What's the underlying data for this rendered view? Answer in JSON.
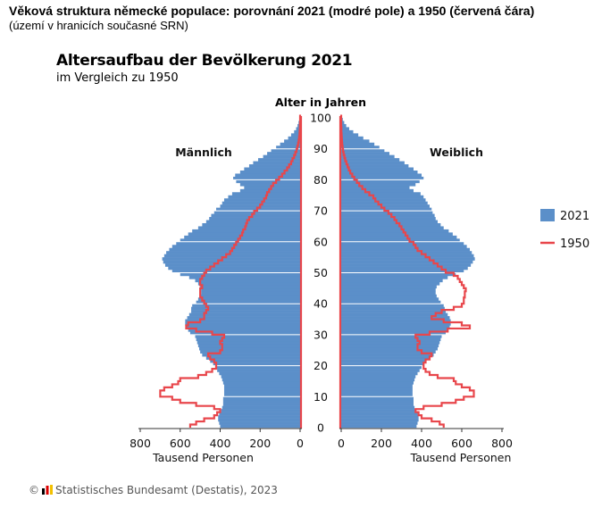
{
  "header": {
    "title": "Věková struktura německé populace: porovnání 2021 (modré pole) a 1950 (červená čára)",
    "subtitle": "(území v hranicích současné SRN)"
  },
  "figure": {
    "title": "Altersaufbau der Bevölkerung 2021",
    "subtitle": "im Vergleich zu 1950",
    "credit_symbol": "©",
    "credit_text": "Statistisches Bundesamt (Destatis), 2023",
    "logo_icon": "destatis-logo-icon"
  },
  "colors": {
    "series_2021": "#5b8fc9",
    "series_1950": "#e8464b",
    "gridline": "#ffffff",
    "axis": "#333333"
  },
  "chart_data": {
    "type": "population-pyramid",
    "title": "Altersaufbau der Bevölkerung 2021",
    "subtitle": "im Vergleich zu 1950",
    "age_axis_label": "Alter in Jahren",
    "age_ticks": [
      0,
      10,
      20,
      30,
      40,
      50,
      60,
      70,
      80,
      90,
      100
    ],
    "x_label": "Tausend Personen",
    "x_ticks": [
      800,
      600,
      400,
      200,
      0
    ],
    "x_ticks_right": [
      0,
      200,
      400,
      600,
      800
    ],
    "xlim": [
      0,
      800
    ],
    "ages": [
      0,
      1,
      2,
      3,
      4,
      5,
      6,
      7,
      8,
      9,
      10,
      11,
      12,
      13,
      14,
      15,
      16,
      17,
      18,
      19,
      20,
      21,
      22,
      23,
      24,
      25,
      26,
      27,
      28,
      29,
      30,
      31,
      32,
      33,
      34,
      35,
      36,
      37,
      38,
      39,
      40,
      41,
      42,
      43,
      44,
      45,
      46,
      47,
      48,
      49,
      50,
      51,
      52,
      53,
      54,
      55,
      56,
      57,
      58,
      59,
      60,
      61,
      62,
      63,
      64,
      65,
      66,
      67,
      68,
      69,
      70,
      71,
      72,
      73,
      74,
      75,
      76,
      77,
      78,
      79,
      80,
      81,
      82,
      83,
      84,
      85,
      86,
      87,
      88,
      89,
      90,
      91,
      92,
      93,
      94,
      95,
      96,
      97,
      98,
      99,
      100
    ],
    "panels": [
      {
        "name": "Männlich",
        "side": "left",
        "series": [
          {
            "name": "2021",
            "style": "bars",
            "values": [
              400,
              405,
              410,
              410,
              405,
              395,
              390,
              385,
              385,
              385,
              380,
              380,
              380,
              380,
              385,
              390,
              395,
              405,
              415,
              425,
              435,
              450,
              470,
              490,
              500,
              505,
              510,
              515,
              520,
              525,
              550,
              560,
              570,
              575,
              575,
              565,
              555,
              545,
              545,
              540,
              520,
              510,
              500,
              495,
              495,
              500,
              510,
              525,
              555,
              600,
              640,
              660,
              675,
              685,
              690,
              680,
              670,
              655,
              640,
              620,
              600,
              580,
              560,
              540,
              510,
              490,
              470,
              455,
              445,
              430,
              420,
              400,
              390,
              380,
              360,
              340,
              300,
              280,
              300,
              320,
              335,
              325,
              300,
              280,
              255,
              235,
              210,
              185,
              165,
              145,
              120,
              100,
              80,
              60,
              45,
              30,
              20,
              13,
              8,
              4,
              2
            ]
          },
          {
            "name": "1950",
            "style": "line",
            "values": [
              550,
              520,
              480,
              430,
              415,
              400,
              430,
              520,
              600,
              640,
              700,
              700,
              680,
              640,
              610,
              600,
              510,
              470,
              440,
              420,
              420,
              430,
              450,
              460,
              400,
              390,
              390,
              400,
              390,
              380,
              440,
              520,
              570,
              560,
              500,
              480,
              480,
              470,
              460,
              470,
              480,
              490,
              500,
              500,
              500,
              490,
              500,
              500,
              490,
              480,
              470,
              450,
              430,
              410,
              390,
              370,
              350,
              340,
              330,
              320,
              310,
              300,
              290,
              285,
              275,
              270,
              265,
              255,
              240,
              230,
              215,
              200,
              190,
              180,
              170,
              165,
              155,
              145,
              135,
              120,
              105,
              90,
              78,
              65,
              55,
              45,
              38,
              30,
              24,
              18,
              14,
              10,
              7,
              5,
              3,
              2,
              1,
              1,
              0,
              0,
              0
            ]
          }
        ]
      },
      {
        "name": "Weiblich",
        "side": "right",
        "series": [
          {
            "name": "2021",
            "style": "bars",
            "values": [
              375,
              380,
              385,
              385,
              380,
              370,
              365,
              360,
              360,
              360,
              355,
              355,
              355,
              355,
              360,
              365,
              370,
              380,
              390,
              400,
              410,
              420,
              440,
              460,
              470,
              480,
              485,
              490,
              495,
              500,
              520,
              530,
              540,
              545,
              545,
              540,
              530,
              520,
              515,
              510,
              495,
              485,
              475,
              470,
              470,
              475,
              490,
              505,
              530,
              570,
              610,
              630,
              645,
              655,
              665,
              660,
              650,
              640,
              625,
              610,
              590,
              575,
              555,
              535,
              510,
              495,
              480,
              470,
              465,
              455,
              450,
              440,
              430,
              420,
              410,
              395,
              360,
              340,
              370,
              390,
              410,
              400,
              380,
              360,
              335,
              315,
              290,
              265,
              240,
              215,
              190,
              165,
              140,
              110,
              85,
              60,
              40,
              25,
              15,
              8,
              4
            ]
          },
          {
            "name": "1950",
            "style": "line",
            "values": [
              510,
              490,
              450,
              400,
              385,
              370,
              410,
              500,
              570,
              610,
              660,
              660,
              640,
              600,
              570,
              560,
              480,
              440,
              420,
              410,
              410,
              420,
              440,
              450,
              400,
              380,
              380,
              390,
              380,
              370,
              440,
              530,
              640,
              600,
              510,
              450,
              470,
              500,
              560,
              600,
              610,
              610,
              615,
              615,
              620,
              610,
              600,
              590,
              580,
              560,
              520,
              500,
              480,
              460,
              440,
              420,
              400,
              380,
              370,
              360,
              340,
              330,
              320,
              310,
              300,
              290,
              275,
              265,
              250,
              235,
              215,
              200,
              185,
              170,
              160,
              140,
              120,
              105,
              90,
              78,
              65,
              55,
              45,
              38,
              32,
              26,
              20,
              16,
              12,
              9,
              7,
              5,
              4,
              3,
              2,
              1,
              1,
              0,
              0,
              0,
              0
            ]
          }
        ]
      }
    ],
    "legend": {
      "placement": "right",
      "entries": [
        {
          "name": "2021",
          "style": "box"
        },
        {
          "name": "1950",
          "style": "line"
        }
      ]
    }
  }
}
